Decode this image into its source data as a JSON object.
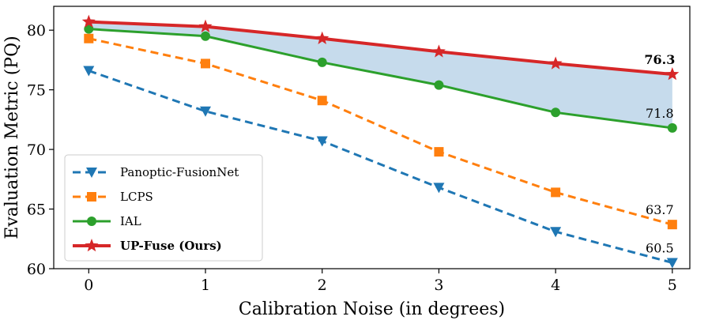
{
  "chart_data": {
    "type": "line",
    "title": "",
    "xlabel": "Calibration Noise (in degrees)",
    "ylabel": "Evaluation Metric (PQ)",
    "x": [
      0,
      1,
      2,
      3,
      4,
      5
    ],
    "xlim": [
      -0.3,
      5.15
    ],
    "ylim": [
      60,
      82
    ],
    "xticks": [
      0,
      1,
      2,
      3,
      4,
      5
    ],
    "yticks": [
      60,
      65,
      70,
      75,
      80
    ],
    "grid": false,
    "legend_position": "lower-left",
    "series": [
      {
        "name": "Panoptic-FusionNet",
        "values": [
          76.6,
          73.2,
          70.7,
          66.8,
          63.1,
          60.5
        ],
        "color": "#1f77b4",
        "linestyle": "dashed",
        "marker": "triangle-down",
        "bold": false
      },
      {
        "name": "LCPS",
        "values": [
          79.3,
          77.2,
          74.1,
          69.8,
          66.4,
          63.7
        ],
        "color": "#ff7f0e",
        "linestyle": "dashed",
        "marker": "square",
        "bold": false
      },
      {
        "name": "IAL",
        "values": [
          80.1,
          79.5,
          77.3,
          75.4,
          73.1,
          71.8
        ],
        "color": "#2ca02c",
        "linestyle": "solid",
        "marker": "circle",
        "bold": false
      },
      {
        "name": "UP-Fuse (Ours)",
        "values": [
          80.7,
          80.3,
          79.3,
          78.2,
          77.2,
          76.3
        ],
        "color": "#d62728",
        "linestyle": "solid",
        "marker": "star",
        "bold": true
      }
    ],
    "shaded_region": {
      "between": [
        "IAL",
        "UP-Fuse (Ours)"
      ],
      "color": "#c6dbec"
    },
    "annotations": [
      {
        "text": "76.3",
        "x": 5,
        "y": 76.3,
        "bold": true
      },
      {
        "text": "71.8",
        "x": 5,
        "y": 71.8,
        "bold": false
      },
      {
        "text": "63.7",
        "x": 5,
        "y": 63.7,
        "bold": false
      },
      {
        "text": "60.5",
        "x": 5,
        "y": 60.5,
        "bold": false
      }
    ]
  }
}
